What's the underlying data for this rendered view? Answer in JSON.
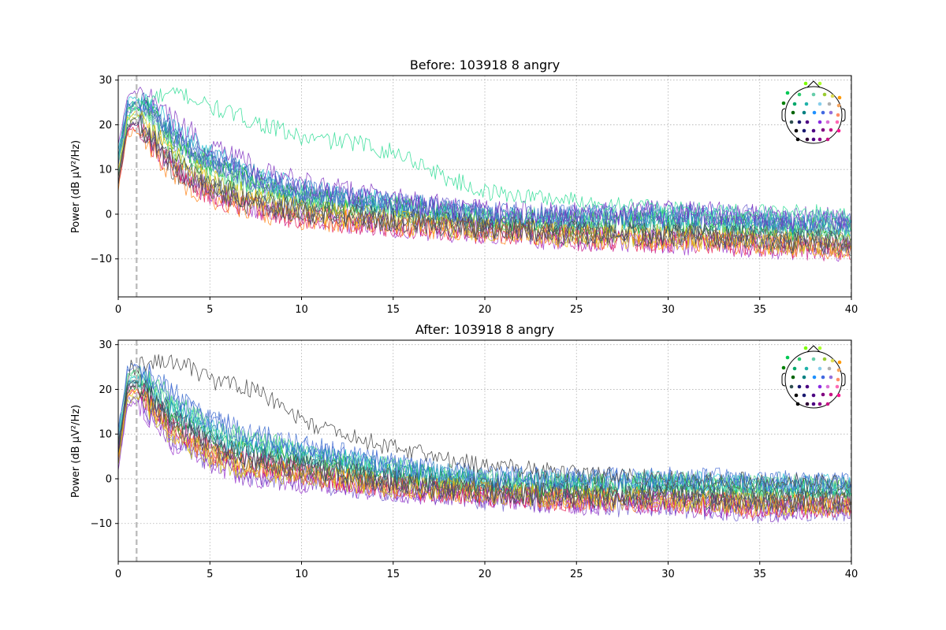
{
  "chart_data": [
    {
      "type": "line",
      "title": "Before: 103918 8 angry",
      "xlabel": "",
      "ylabel": "Power (dB µV²/Hz)",
      "xlim": [
        0,
        40
      ],
      "ylim": [
        -18.5,
        31
      ],
      "xticks": [
        0,
        5,
        10,
        15,
        20,
        25,
        30,
        35,
        40
      ],
      "yticks": [
        -10,
        0,
        10,
        20,
        30
      ],
      "grid": true,
      "marker_x": 1,
      "sensor_inset": "top-right",
      "series_summary": {
        "x": [
          0,
          0.5,
          1,
          2,
          3,
          5,
          7,
          10,
          15,
          20,
          25,
          30,
          35,
          40
        ],
        "y_mean": [
          9,
          21,
          22,
          18,
          13,
          8,
          5,
          2,
          0,
          -2,
          -3,
          -3,
          -4,
          -5
        ],
        "y_spread": [
          6,
          5,
          5,
          7,
          8,
          8,
          7,
          6,
          5,
          4,
          5,
          6,
          6,
          6
        ]
      },
      "highlight_series": {
        "x": [
          0,
          0.7,
          2,
          3.5,
          5,
          8,
          10,
          13,
          15.7,
          18,
          20,
          25,
          30,
          40
        ],
        "y": [
          12,
          24,
          26,
          27,
          24,
          20,
          17,
          16,
          13,
          8,
          5,
          3,
          1,
          0
        ]
      }
    },
    {
      "type": "line",
      "title": "After: 103918 8 angry",
      "xlabel": "",
      "ylabel": "Power (dB µV²/Hz)",
      "xlim": [
        0,
        40
      ],
      "ylim": [
        -18.5,
        31
      ],
      "xticks": [
        0,
        5,
        10,
        15,
        20,
        25,
        30,
        35,
        40
      ],
      "yticks": [
        -10,
        0,
        10,
        20,
        30
      ],
      "grid": true,
      "marker_x": 1,
      "sensor_inset": "top-right",
      "series_summary": {
        "x": [
          0,
          0.5,
          1,
          2,
          3,
          5,
          7,
          10,
          15,
          20,
          25,
          30,
          35,
          40
        ],
        "y_mean": [
          6,
          20,
          21,
          17,
          13,
          8,
          5,
          3,
          0,
          -2,
          -3,
          -3,
          -4,
          -4
        ],
        "y_spread": [
          5,
          5,
          5,
          6,
          7,
          7,
          7,
          6,
          5,
          4,
          5,
          5,
          6,
          5
        ]
      },
      "highlight_series": {
        "x": [
          0,
          0.7,
          2,
          3.5,
          5,
          7.5,
          10,
          13,
          15,
          20,
          25,
          30,
          40
        ],
        "y": [
          8,
          25,
          26,
          26,
          22,
          20,
          13,
          9,
          7,
          3,
          1,
          0,
          -1
        ]
      }
    }
  ],
  "series_colors": [
    "#1b9e77",
    "#00a000",
    "#2ecc71",
    "#44d480",
    "#66e0a0",
    "#17becf",
    "#1f77b4",
    "#3366cc",
    "#4a6fd6",
    "#6a5acd",
    "#7b2cbf",
    "#9932cc",
    "#c71585",
    "#e6194b",
    "#ff7f0e",
    "#f0c000",
    "#bcbd22",
    "#2f4f4f",
    "#3d3d6b",
    "#555555"
  ],
  "sensor_colors": [
    "#7cfc00",
    "#adff2f",
    "#00c853",
    "#2ecc71",
    "#66cdaa",
    "#9acd32",
    "#dddd55",
    "#ff9900",
    "#008000",
    "#00a86b",
    "#20b2aa",
    "#87ceeb",
    "#b0b0b0",
    "#f4a460",
    "#006400",
    "#008080",
    "#1e90ff",
    "#4169e1",
    "#9370db",
    "#ff8c69",
    "#2f4f4f",
    "#191970",
    "#4b0082",
    "#8a2be2",
    "#da70d6",
    "#ff69b4",
    "#000000",
    "#191970",
    "#4b0082",
    "#800080",
    "#c71585",
    "#ff1493",
    "#000000",
    "#2b0033",
    "#4b0082",
    "#8b008b",
    "#c71585"
  ]
}
